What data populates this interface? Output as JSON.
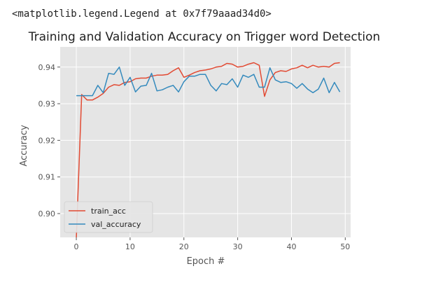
{
  "cell": {
    "repr_text": "<matplotlib.legend.Legend at 0x7f79aaad34d0>"
  },
  "colors": {
    "train_acc": "#e24a33",
    "val_accuracy": "#348abd",
    "plot_background": "#e5e5e5",
    "grid": "#ffffff"
  },
  "chart_data": {
    "type": "line",
    "title": "Training and Validation Accuracy on Trigger word Detection",
    "xlabel": "Epoch #",
    "ylabel": "Accuracy",
    "xlim": [
      -3,
      51
    ],
    "ylim": [
      0.8935,
      0.9455
    ],
    "xticks": [
      "0",
      "10",
      "20",
      "30",
      "40",
      "50"
    ],
    "yticks": [
      "0.90",
      "0.91",
      "0.92",
      "0.93",
      "0.94"
    ],
    "grid": true,
    "legend_position": "lower left",
    "x": [
      0,
      1,
      2,
      3,
      4,
      5,
      6,
      7,
      8,
      9,
      10,
      11,
      12,
      13,
      14,
      15,
      16,
      17,
      18,
      19,
      20,
      21,
      22,
      23,
      24,
      25,
      26,
      27,
      28,
      29,
      30,
      31,
      32,
      33,
      34,
      35,
      36,
      37,
      38,
      39,
      40,
      41,
      42,
      43,
      44,
      45,
      46,
      47,
      48,
      49
    ],
    "series": [
      {
        "name": "train_acc",
        "values": [
          0.8935,
          0.9325,
          0.931,
          0.931,
          0.9318,
          0.9328,
          0.9345,
          0.9352,
          0.935,
          0.9358,
          0.936,
          0.9368,
          0.937,
          0.937,
          0.9375,
          0.9378,
          0.9378,
          0.938,
          0.939,
          0.9398,
          0.9372,
          0.9378,
          0.9385,
          0.939,
          0.9392,
          0.9395,
          0.94,
          0.9402,
          0.941,
          0.9408,
          0.94,
          0.9402,
          0.9408,
          0.9412,
          0.9405,
          0.932,
          0.9365,
          0.9385,
          0.939,
          0.9388,
          0.9395,
          0.9398,
          0.9405,
          0.9398,
          0.9405,
          0.94,
          0.9402,
          0.94,
          0.941,
          0.9412
        ]
      },
      {
        "name": "val_accuracy",
        "values": [
          0.9322,
          0.9322,
          0.9322,
          0.9322,
          0.935,
          0.933,
          0.9383,
          0.938,
          0.94,
          0.935,
          0.9372,
          0.9332,
          0.9348,
          0.935,
          0.9383,
          0.9335,
          0.9338,
          0.9345,
          0.935,
          0.9332,
          0.936,
          0.9375,
          0.9375,
          0.938,
          0.938,
          0.935,
          0.9335,
          0.9355,
          0.9352,
          0.9368,
          0.9345,
          0.9378,
          0.9372,
          0.938,
          0.9345,
          0.9345,
          0.9398,
          0.9365,
          0.9358,
          0.936,
          0.9355,
          0.9342,
          0.9355,
          0.934,
          0.933,
          0.934,
          0.937,
          0.933,
          0.9358,
          0.9332
        ]
      }
    ]
  }
}
